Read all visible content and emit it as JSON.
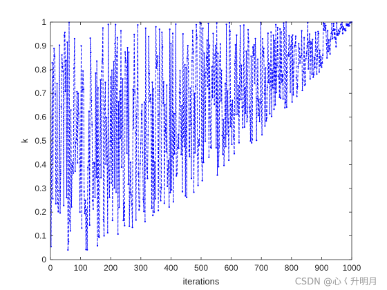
{
  "chart_data": {
    "type": "line",
    "title": "",
    "xlabel": "iterations",
    "ylabel": "k",
    "xlim": [
      0,
      1000
    ],
    "ylim": [
      0,
      1
    ],
    "xticks": [
      "0",
      "100",
      "200",
      "300",
      "400",
      "500",
      "600",
      "700",
      "800",
      "900",
      "1000"
    ],
    "yticks": [
      "0",
      "0.1",
      "0.2",
      "0.3",
      "0.4",
      "0.5",
      "0.6",
      "0.7",
      "0.8",
      "0.9",
      "1"
    ],
    "grid": false,
    "legend": "none",
    "series": [
      {
        "color": "#0000ff",
        "line_style": "dashed",
        "marker": "dot",
        "description_values": {
          "x": [
            0,
            1000
          ],
          "lower_envelope": [
            [
              0,
              0.05
            ],
            [
              100,
              0.03
            ],
            [
              200,
              0.08
            ],
            [
              300,
              0.15
            ],
            [
              400,
              0.22
            ],
            [
              500,
              0.3
            ],
            [
              600,
              0.4
            ],
            [
              700,
              0.52
            ],
            [
              800,
              0.66
            ],
            [
              900,
              0.8
            ],
            [
              1000,
              1.0
            ]
          ],
          "upper_envelope": [
            [
              0,
              1.0
            ],
            [
              1000,
              1.0
            ]
          ]
        }
      }
    ]
  },
  "watermark": "CSDN @心𡿨升明月"
}
